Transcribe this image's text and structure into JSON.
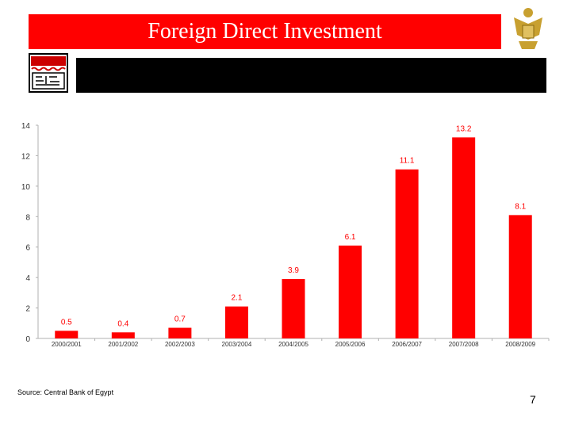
{
  "header": {
    "title": "Foreign Direct Investment"
  },
  "footer": {
    "source": "Source: Central Bank of Egypt",
    "page_number": "7"
  },
  "colors": {
    "title_bar": "#ff0000",
    "band": "#000000",
    "bar": "#ff0000",
    "label": "#ff0000"
  },
  "chart_data": {
    "type": "bar",
    "categories": [
      "2000/2001",
      "2001/2002",
      "2002/2003",
      "2003/2004",
      "2004/2005",
      "2005/2006",
      "2006/2007",
      "2007/2008",
      "2008/2009"
    ],
    "values": [
      0.5,
      0.4,
      0.7,
      2.1,
      3.9,
      6.1,
      11.1,
      13.2,
      8.1
    ],
    "data_labels": [
      "0.5",
      "0.4",
      "0.7",
      "2.1",
      "3.9",
      "6.1",
      "11.1",
      "13.2",
      "8.1"
    ],
    "yticks": [
      0,
      2,
      4,
      6,
      8,
      10,
      12,
      14
    ],
    "ylim": [
      0,
      14
    ],
    "title": "",
    "xlabel": "",
    "ylabel": "",
    "grid": false,
    "legend": "none"
  }
}
